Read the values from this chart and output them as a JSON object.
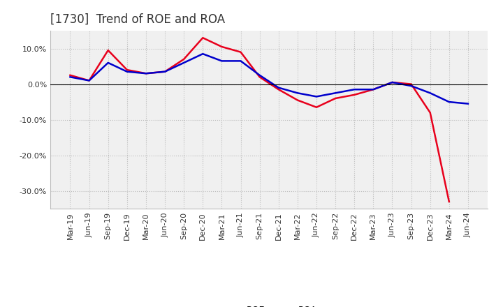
{
  "title": "[1730]  Trend of ROE and ROA",
  "x_labels": [
    "Mar-19",
    "Jun-19",
    "Sep-19",
    "Dec-19",
    "Mar-20",
    "Jun-20",
    "Sep-20",
    "Dec-20",
    "Mar-21",
    "Jun-21",
    "Sep-21",
    "Dec-21",
    "Mar-22",
    "Jun-22",
    "Sep-22",
    "Dec-22",
    "Mar-23",
    "Jun-23",
    "Sep-23",
    "Dec-23",
    "Mar-24",
    "Jun-24"
  ],
  "roe_values": [
    2.5,
    1.0,
    9.5,
    4.0,
    3.0,
    3.5,
    7.0,
    13.0,
    10.5,
    9.0,
    2.0,
    -1.5,
    -4.5,
    -6.5,
    -4.0,
    -3.0,
    -1.5,
    0.5,
    0.0,
    -8.0,
    -33.0,
    null
  ],
  "roa_values": [
    2.0,
    1.0,
    6.0,
    3.5,
    3.0,
    3.5,
    6.0,
    8.5,
    6.5,
    6.5,
    2.5,
    -1.0,
    -2.5,
    -3.5,
    -2.5,
    -1.5,
    -1.5,
    0.5,
    -0.5,
    -2.5,
    -5.0,
    -5.5
  ],
  "roe_color": "#e8001c",
  "roa_color": "#0000cc",
  "line_width": 1.8,
  "ylim": [
    -35,
    15
  ],
  "yticks": [
    -30,
    -20,
    -10,
    0,
    10
  ],
  "ytick_labels": [
    "-30.0%",
    "-20.0%",
    "-10.0%",
    "0.0%",
    "10.0%"
  ],
  "background_color": "#ffffff",
  "plot_background": "#f0f0f0",
  "grid_color": "#bbbbbb",
  "title_fontsize": 12,
  "title_color": "#333333",
  "axis_fontsize": 8,
  "legend_fontsize": 9
}
